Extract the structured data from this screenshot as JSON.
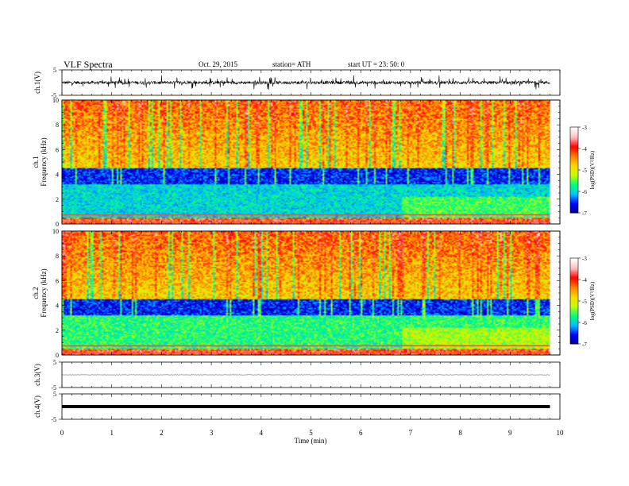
{
  "header": {
    "title": "VLF  Spectra",
    "date": "Oct. 29, 2015",
    "station": "station= ATH",
    "start": "start  UT =   23: 50: 0"
  },
  "chart_data": [
    {
      "type": "line",
      "panel": "ch1-waveform",
      "ylabel": "ch.1(V)",
      "ylim": [
        -5,
        5
      ],
      "yticks": [
        5,
        -5
      ],
      "xlim": [
        0,
        10
      ],
      "series": [
        {
          "baseline": 0,
          "noise_amplitude": 0.6,
          "spike_amplitude": 2.5,
          "end": 9.8
        }
      ]
    },
    {
      "type": "heatmap",
      "panel": "ch1-spectrogram",
      "ylabel": "ch.1\nFrequency  (kHz)",
      "ylabel_lines": [
        "ch.1",
        "Frequency  (kHz)"
      ],
      "ylim": [
        0,
        10
      ],
      "yticks": [
        0,
        2,
        4,
        6,
        8,
        10
      ],
      "xlim": [
        0,
        10
      ],
      "data_end": 9.8,
      "colorbar": {
        "label": "log(PSD)(V²/Hz)",
        "range": [
          -7,
          -3
        ],
        "ticks": [
          -3,
          -4,
          -5,
          -6,
          -7
        ]
      }
    },
    {
      "type": "heatmap",
      "panel": "ch2-spectrogram",
      "ylabel": "ch.2\nFrequency  (kHz)",
      "ylabel_lines": [
        "ch.2",
        "Frequency  (kHz)"
      ],
      "ylim": [
        0,
        10
      ],
      "yticks": [
        0,
        2,
        4,
        6,
        8,
        10
      ],
      "xlim": [
        0,
        10
      ],
      "data_end": 9.8,
      "colorbar": {
        "label": "log(PSD)(V²/Hz)",
        "range": [
          -7,
          -3
        ],
        "ticks": [
          -3,
          -4,
          -5,
          -6,
          -7
        ]
      }
    },
    {
      "type": "line",
      "panel": "ch3-waveform",
      "ylabel": "ch.3(V)",
      "ylim": [
        -5,
        5
      ],
      "yticks": [
        5,
        -5
      ],
      "xlim": [
        0,
        10
      ],
      "series": [
        {
          "baseline": 0,
          "noise_amplitude": 0.1,
          "end": 9.8
        }
      ]
    },
    {
      "type": "line",
      "panel": "ch4-waveform",
      "ylabel": "ch.4(V)",
      "ylim": [
        -5,
        5
      ],
      "yticks": [
        5,
        -5
      ],
      "xlim": [
        0,
        10
      ],
      "series": [
        {
          "baseline": 0,
          "noise_amplitude": 0.5,
          "end": 9.8
        }
      ]
    }
  ],
  "xaxis": {
    "label": "Time  (min)",
    "ticks": [
      0,
      1,
      2,
      3,
      4,
      5,
      6,
      7,
      8,
      9,
      10
    ]
  },
  "colors": {
    "waveform": "#000000",
    "colormap": [
      "#000080",
      "#0000ff",
      "#00c0ff",
      "#00ff80",
      "#c0ff00",
      "#ffd700",
      "#ff8000",
      "#ff0000",
      "#ffc0c0",
      "#ffffff"
    ]
  }
}
